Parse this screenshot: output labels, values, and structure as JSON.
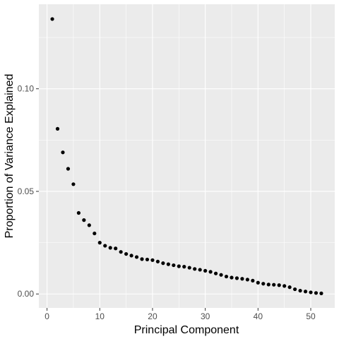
{
  "chart_data": {
    "type": "scatter",
    "title": "",
    "xlabel": "Principal Component",
    "ylabel": "Proportion of Variance Explained",
    "xlim": [
      -1.55,
      54.55
    ],
    "ylim": [
      -0.0068,
      0.1412
    ],
    "x_ticks": [
      0,
      10,
      20,
      30,
      40,
      50
    ],
    "x_tick_labels": [
      "0",
      "10",
      "20",
      "30",
      "40",
      "50"
    ],
    "y_ticks": [
      0.0,
      0.05,
      0.1
    ],
    "y_tick_labels": [
      "0.00",
      "0.05",
      "0.10"
    ],
    "x_minor_ticks": [
      5,
      15,
      25,
      35,
      45
    ],
    "y_minor_ticks": [
      0.025,
      0.075,
      0.125
    ],
    "grid": true,
    "point_color": "#000000",
    "panel_color": "#ebebeb",
    "x": [
      1,
      2,
      3,
      4,
      5,
      6,
      7,
      8,
      9,
      10,
      11,
      12,
      13,
      14,
      15,
      16,
      17,
      18,
      19,
      20,
      21,
      22,
      23,
      24,
      25,
      26,
      27,
      28,
      29,
      30,
      31,
      32,
      33,
      34,
      35,
      36,
      37,
      38,
      39,
      40,
      41,
      42,
      43,
      44,
      45,
      46,
      47,
      48,
      49,
      50,
      51,
      52
    ],
    "y": [
      0.134,
      0.0805,
      0.069,
      0.061,
      0.0535,
      0.0395,
      0.036,
      0.0335,
      0.0295,
      0.025,
      0.0235,
      0.0225,
      0.0222,
      0.0205,
      0.0195,
      0.0187,
      0.018,
      0.017,
      0.0168,
      0.0165,
      0.0158,
      0.015,
      0.0145,
      0.014,
      0.0135,
      0.0133,
      0.0128,
      0.0122,
      0.0118,
      0.0113,
      0.0108,
      0.01,
      0.0093,
      0.0085,
      0.008,
      0.0077,
      0.0074,
      0.007,
      0.0065,
      0.0055,
      0.005,
      0.0046,
      0.0045,
      0.0043,
      0.0039,
      0.0033,
      0.0023,
      0.0016,
      0.0012,
      0.0008,
      0.0005,
      0.0003
    ]
  }
}
